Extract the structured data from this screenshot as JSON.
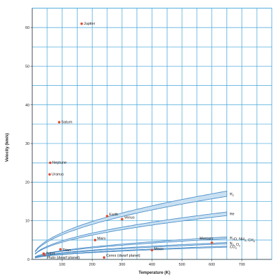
{
  "chart_data": {
    "type": "scatter",
    "title": "",
    "xlabel": "Temperature (K)",
    "ylabel": "Velocity (km/s)",
    "xlim": [
      0,
      800
    ],
    "ylim": [
      0,
      65
    ],
    "x_ticks": [
      "100",
      "200",
      "300",
      "400",
      "500",
      "600",
      "700"
    ],
    "y_ticks": [
      "0",
      "10",
      "20",
      "30",
      "40",
      "50",
      "60"
    ],
    "grid": true,
    "colors": {
      "grid": "#3ca2d8",
      "band": "#4e8fc8",
      "band_fill": "#c8e0f2",
      "point": "#e04a2c",
      "text": "#222222"
    },
    "points": [
      {
        "name": "Jupiter",
        "x": 165,
        "y": 61
      },
      {
        "name": "Saturn",
        "x": 90,
        "y": 35.5
      },
      {
        "name": "Neptune",
        "x": 60,
        "y": 25
      },
      {
        "name": "Uranus",
        "x": 58,
        "y": 22
      },
      {
        "name": "Earth",
        "x": 250,
        "y": 11.2
      },
      {
        "name": "Venus",
        "x": 300,
        "y": 10.4
      },
      {
        "name": "Mars",
        "x": 210,
        "y": 5.0
      },
      {
        "name": "Mercury",
        "x": 600,
        "y": 4.3
      },
      {
        "name": "Moon",
        "x": 400,
        "y": 2.4
      },
      {
        "name": "Titan",
        "x": 94,
        "y": 2.6
      },
      {
        "name": "Triton",
        "x": 38,
        "y": 1.5
      },
      {
        "name": "Pluto (dwarf planet)",
        "x": 40,
        "y": 1.2
      },
      {
        "name": "Ceres (dwarf planet)",
        "x": 240,
        "y": 0.5
      }
    ],
    "series": [
      {
        "name": "H2",
        "label_main": "H",
        "label_sub": "2",
        "y_at_650": 17
      },
      {
        "name": "He",
        "label_main": "He",
        "label_sub": "",
        "y_at_650": 11.8
      },
      {
        "name": "H2O, NH3, CH4",
        "label_parts": [
          [
            "H",
            ""
          ],
          [
            "2",
            "sub"
          ],
          [
            "O, NH",
            ""
          ],
          [
            "3",
            "sub"
          ],
          [
            ", CH",
            ""
          ],
          [
            "4",
            "sub"
          ]
        ],
        "y_at_650": 5.6
      },
      {
        "name": "N2, O2",
        "label_parts": [
          [
            "N",
            ""
          ],
          [
            "2",
            "sub"
          ],
          [
            ", O",
            ""
          ],
          [
            "2",
            "sub"
          ]
        ],
        "y_at_650": 4.2
      },
      {
        "name": "CO2",
        "label_parts": [
          [
            "CO",
            ""
          ],
          [
            "2",
            "sub"
          ]
        ],
        "y_at_650": 3.3
      }
    ]
  }
}
